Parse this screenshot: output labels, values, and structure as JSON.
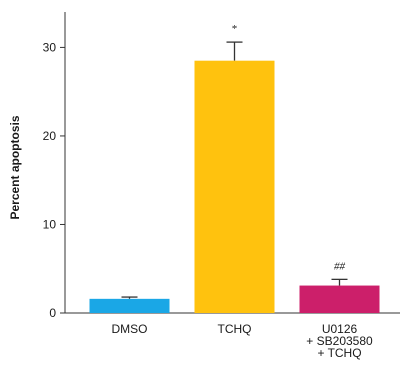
{
  "chart_data": {
    "type": "bar",
    "ylabel": "Percent apoptosis",
    "ylim": [
      0,
      34
    ],
    "yticks": [
      0,
      10,
      20,
      30
    ],
    "grid": false,
    "bars": [
      {
        "category_lines": [
          "DMSO"
        ],
        "value": 1.6,
        "error": 0.2,
        "color": "#1aa7e6",
        "annotation": ""
      },
      {
        "category_lines": [
          "TCHQ"
        ],
        "value": 28.5,
        "error": 2.1,
        "color": "#ffc20e",
        "annotation": "*"
      },
      {
        "category_lines": [
          "U0126",
          "+ SB203580",
          "+ TCHQ"
        ],
        "value": 3.1,
        "error": 0.7,
        "color": "#cc1f6a",
        "annotation": "##"
      }
    ]
  }
}
